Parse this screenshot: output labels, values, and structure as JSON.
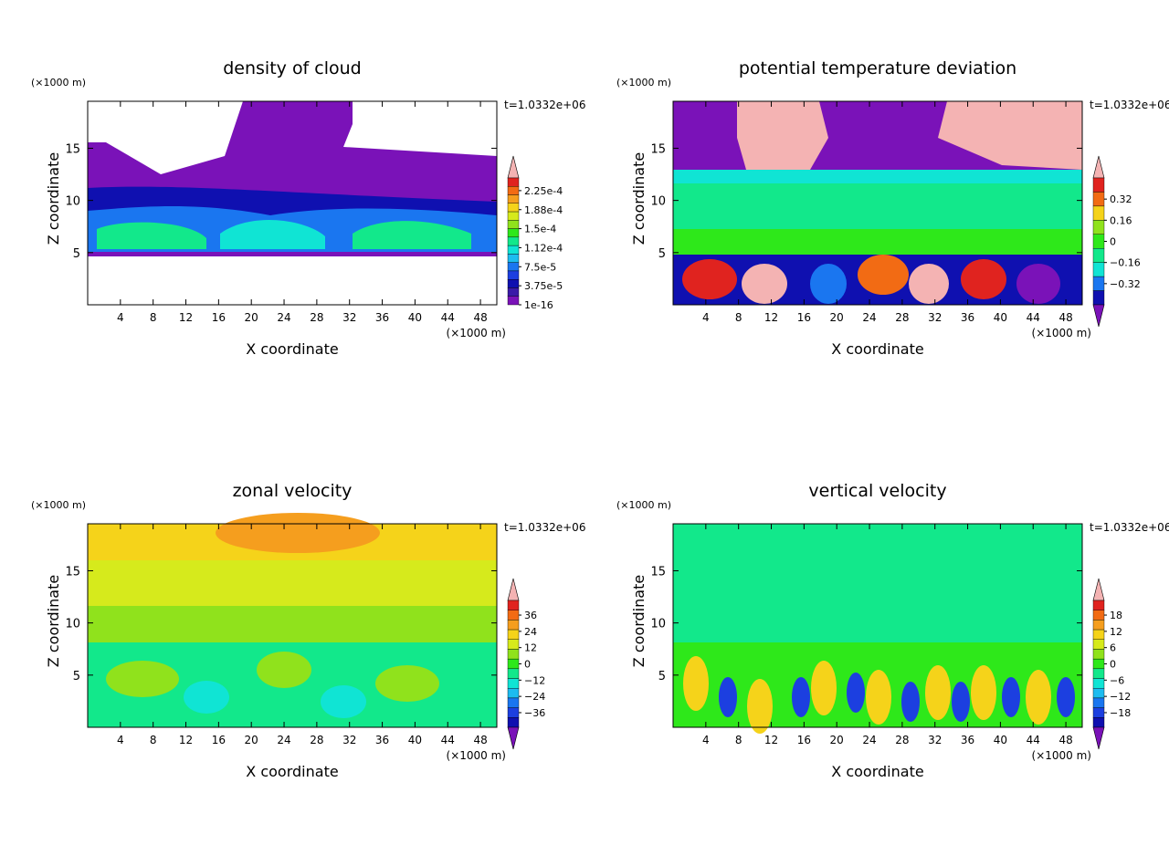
{
  "figure": {
    "time_label": "t=1.0332e+06",
    "scale_label": "(×1000 m)"
  },
  "chart_data": [
    {
      "type": "heatmap",
      "title": "density of cloud",
      "xlabel": "X coordinate",
      "ylabel": "Z coordinate",
      "x_unit": "(×1000 m)",
      "y_unit": "(×1000 m)",
      "time": "t=1.0332e+06",
      "xlim": [
        0,
        50
      ],
      "ylim": [
        0,
        19.5
      ],
      "xticks": [
        "4",
        "8",
        "12",
        "16",
        "20",
        "24",
        "28",
        "32",
        "36",
        "40",
        "44",
        "48"
      ],
      "yticks": [
        "5",
        "10",
        "15"
      ],
      "colorbar": {
        "labels": [
          "2.25e-4",
          "1.88e-4",
          "1.5e-4",
          "1.12e-4",
          "7.5e-5",
          "3.75e-5",
          "1e-16"
        ],
        "colors": [
          "#f4b3b3",
          "#e0231f",
          "#f26b14",
          "#f59e1e",
          "#f5d31a",
          "#d6ea1c",
          "#90e21c",
          "#2ee81a",
          "#12e88b",
          "#10e4d4",
          "#1dbcf0",
          "#1a76f0",
          "#1c3fe0",
          "#0f10b0",
          "#3a1aa8",
          "#7a12b8"
        ],
        "top_arrow": true,
        "bottom_arrow": false
      }
    },
    {
      "type": "heatmap",
      "title": "potential temperature deviation",
      "xlabel": "X coordinate",
      "ylabel": "Z coordinate",
      "x_unit": "(×1000 m)",
      "y_unit": "(×1000 m)",
      "time": "t=1.0332e+06",
      "xlim": [
        0,
        50
      ],
      "ylim": [
        0,
        19.5
      ],
      "xticks": [
        "4",
        "8",
        "12",
        "16",
        "20",
        "24",
        "28",
        "32",
        "36",
        "40",
        "44",
        "48"
      ],
      "yticks": [
        "5",
        "10",
        "15"
      ],
      "colorbar": {
        "labels": [
          "0.32",
          "0.16",
          "0",
          "−0.16",
          "−0.32"
        ],
        "colors": [
          "#f4b3b3",
          "#e0231f",
          "#f26b14",
          "#f5d31a",
          "#90e21c",
          "#2ee81a",
          "#12e88b",
          "#10e4d4",
          "#1a76f0",
          "#0f10b0",
          "#7a12b8"
        ],
        "top_arrow": true,
        "bottom_arrow": true
      }
    },
    {
      "type": "heatmap",
      "title": "zonal velocity",
      "xlabel": "X coordinate",
      "ylabel": "Z coordinate",
      "x_unit": "(×1000 m)",
      "y_unit": "(×1000 m)",
      "time": "t=1.0332e+06",
      "xlim": [
        0,
        50
      ],
      "ylim": [
        0,
        19.5
      ],
      "xticks": [
        "4",
        "8",
        "12",
        "16",
        "20",
        "24",
        "28",
        "32",
        "36",
        "40",
        "44",
        "48"
      ],
      "yticks": [
        "5",
        "10",
        "15"
      ],
      "colorbar": {
        "labels": [
          "36",
          "24",
          "12",
          "0",
          "−12",
          "−24",
          "−36"
        ],
        "colors": [
          "#f4b3b3",
          "#e0231f",
          "#f26b14",
          "#f59e1e",
          "#f5d31a",
          "#d6ea1c",
          "#90e21c",
          "#2ee81a",
          "#12e88b",
          "#10e4d4",
          "#1dbcf0",
          "#1a76f0",
          "#1c3fe0",
          "#0f10b0",
          "#7a12b8"
        ],
        "top_arrow": true,
        "bottom_arrow": true
      }
    },
    {
      "type": "heatmap",
      "title": "vertical velocity",
      "xlabel": "X coordinate",
      "ylabel": "Z coordinate",
      "x_unit": "(×1000 m)",
      "y_unit": "(×1000 m)",
      "time": "t=1.0332e+06",
      "xlim": [
        0,
        50
      ],
      "ylim": [
        0,
        19.5
      ],
      "xticks": [
        "4",
        "8",
        "12",
        "16",
        "20",
        "24",
        "28",
        "32",
        "36",
        "40",
        "44",
        "48"
      ],
      "yticks": [
        "5",
        "10",
        "15"
      ],
      "colorbar": {
        "labels": [
          "18",
          "12",
          "6",
          "0",
          "−6",
          "−12",
          "−18"
        ],
        "colors": [
          "#f4b3b3",
          "#e0231f",
          "#f26b14",
          "#f59e1e",
          "#f5d31a",
          "#d6ea1c",
          "#90e21c",
          "#2ee81a",
          "#12e88b",
          "#10e4d4",
          "#1dbcf0",
          "#1a76f0",
          "#1c3fe0",
          "#0f10b0",
          "#7a12b8"
        ],
        "top_arrow": true,
        "bottom_arrow": true
      }
    }
  ]
}
